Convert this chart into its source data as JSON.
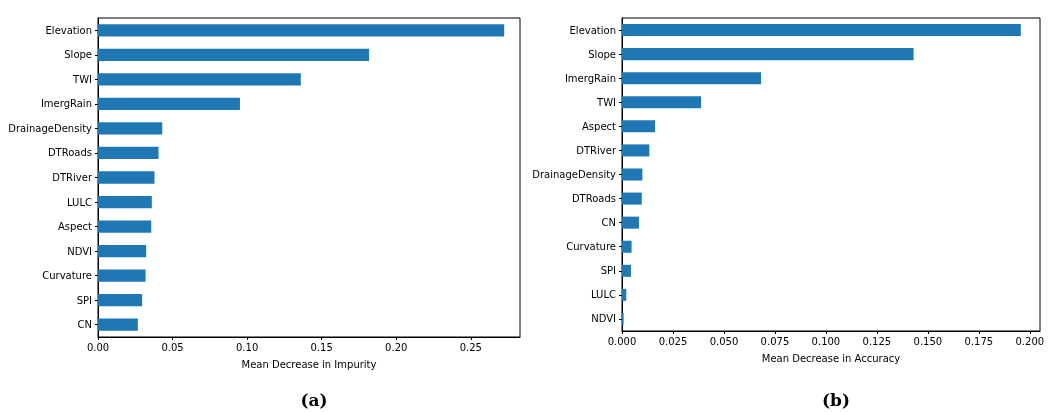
{
  "chart_data": [
    {
      "type": "bar",
      "orientation": "horizontal",
      "xlabel": "Mean Decrease in Impurity",
      "annotations": [
        "(a)"
      ],
      "categories": [
        "Elevation",
        "Slope",
        "TWI",
        "ImergRain",
        "DrainageDensity",
        "DTRoads",
        "DTRiver",
        "LULC",
        "Aspect",
        "NDVI",
        "Curvature",
        "SPI",
        "CN"
      ],
      "values": [
        0.2724,
        0.1818,
        0.136,
        0.0952,
        0.0431,
        0.0406,
        0.0379,
        0.0361,
        0.0357,
        0.0323,
        0.0319,
        0.0296,
        0.0267
      ],
      "color": "#1f77b4",
      "xlim": [
        0,
        0.283
      ],
      "xticks": [
        {
          "value": 0,
          "label": "0.00"
        },
        0.05,
        {
          "value": 0.1,
          "label": "0.10"
        },
        0.15,
        {
          "value": 0.2,
          "label": "0.20"
        },
        0.25
      ]
    },
    {
      "type": "bar",
      "orientation": "horizontal",
      "xlabel": "Mean Decrease in Accuracy",
      "annotations": [
        "(b)"
      ],
      "categories": [
        "Elevation",
        "Slope",
        "ImergRain",
        "TWI",
        "Aspect",
        "DTRiver",
        "DrainageDensity",
        "DTRoads",
        "CN",
        "Curvature",
        "SPI",
        "LULC",
        "NDVI"
      ],
      "values": [
        0.1956,
        0.143,
        0.0682,
        0.0388,
        0.0162,
        0.0134,
        0.01,
        0.0097,
        0.0083,
        0.0047,
        0.0044,
        0.0021,
        0.0008
      ],
      "color": "#1f77b4",
      "xlim": [
        0,
        0.205
      ],
      "xticks": [
        {
          "value": 0,
          "label": "0.000"
        },
        0.025,
        {
          "value": 0.05,
          "label": "0.050"
        },
        0.075,
        {
          "value": 0.1,
          "label": "0.100"
        },
        0.125,
        {
          "value": 0.15,
          "label": "0.150"
        },
        0.175,
        {
          "value": 0.2,
          "label": "0.200"
        }
      ]
    }
  ]
}
